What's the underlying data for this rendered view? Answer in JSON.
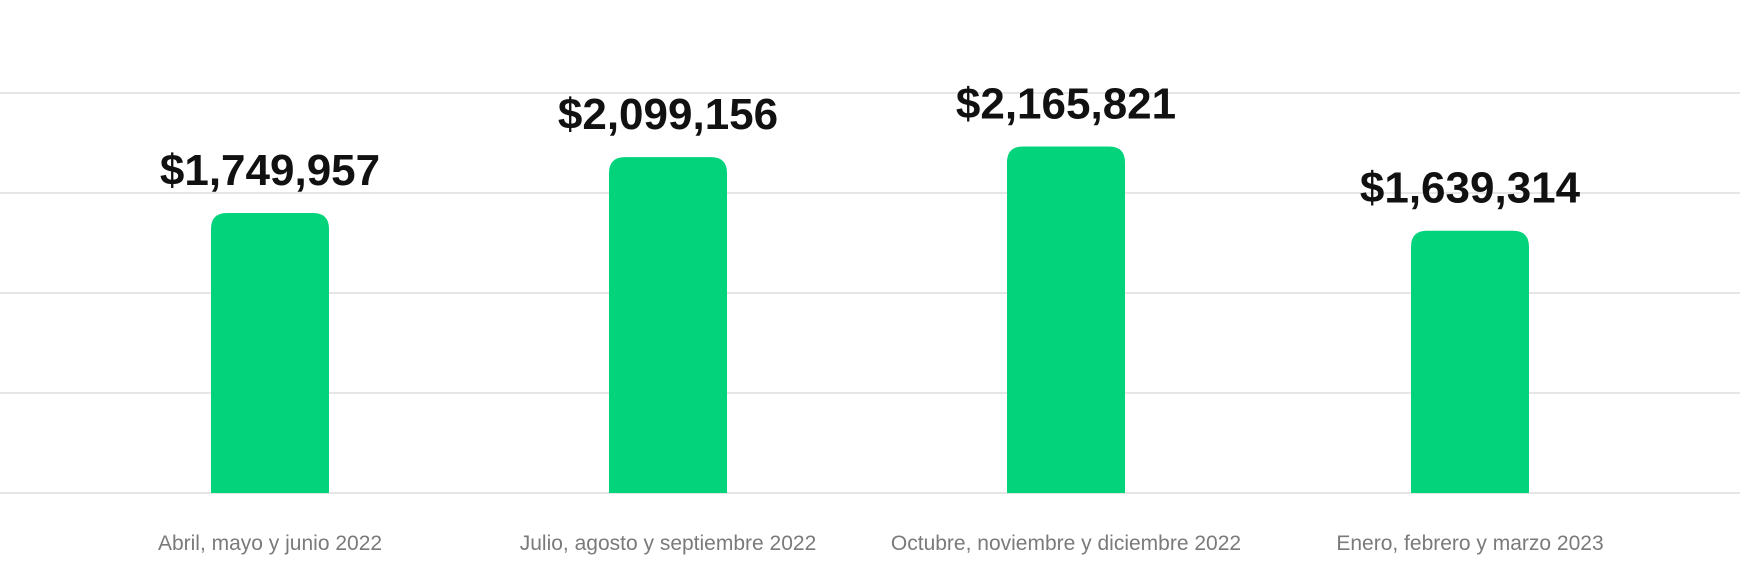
{
  "chart_data": {
    "type": "bar",
    "categories": [
      "Abril, mayo y junio 2022",
      "Julio, agosto y septiembre 2022",
      "Octubre, noviembre y diciembre 2022",
      "Enero, febrero y marzo 2023"
    ],
    "values": [
      1749957,
      2099156,
      2165821,
      1639314
    ],
    "data_labels": [
      "$1,749,957",
      "$2,099,156",
      "$2,165,821",
      "$1,639,314"
    ],
    "title": "",
    "xlabel": "",
    "ylabel": "",
    "ylim": [
      0,
      2500000
    ],
    "grid": true,
    "legend": "none",
    "colors": {
      "bar": "#03d47c",
      "grid": "#e6e6e6",
      "value_text": "#111111",
      "category_text": "#7a7a7a"
    }
  }
}
